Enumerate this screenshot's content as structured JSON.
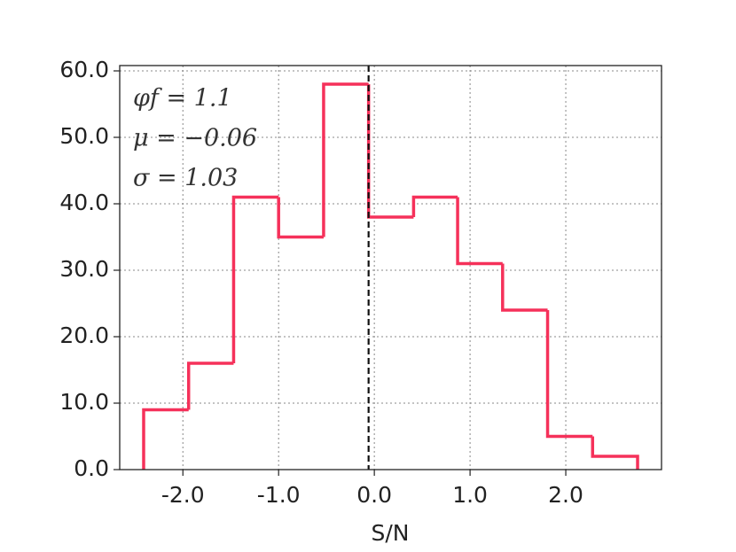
{
  "chart_data": {
    "type": "histogram",
    "xlabel": "S/N",
    "bins": [
      -2.41,
      -1.94,
      -1.47,
      -1.0,
      -0.53,
      -0.06,
      0.41,
      0.87,
      1.34,
      1.81,
      2.28,
      2.75
    ],
    "counts": [
      9,
      16,
      41,
      35,
      58,
      38,
      41,
      31,
      24,
      5,
      2
    ],
    "color": "#f5315a",
    "vline": -0.06,
    "annotations": [
      "φf = 1.1",
      "μ = −0.06",
      "σ = 1.03"
    ],
    "xlim": [
      -2.66,
      3.0
    ],
    "xticks": [
      {
        "value": -2,
        "label": "-2.0"
      },
      {
        "value": -1,
        "label": "-1.0"
      },
      {
        "value": 0,
        "label": "0.0"
      },
      {
        "value": 1,
        "label": "1.0"
      },
      {
        "value": 2,
        "label": "2.0"
      }
    ],
    "ylim": [
      0,
      60.8
    ],
    "yticks": [
      {
        "value": 0,
        "label": "0.0"
      },
      {
        "value": 10,
        "label": "10.0"
      },
      {
        "value": 20,
        "label": "20.0"
      },
      {
        "value": 30,
        "label": "30.0"
      },
      {
        "value": 40,
        "label": "40.0"
      },
      {
        "value": 50,
        "label": "50.0"
      },
      {
        "value": 60,
        "label": "60.0"
      }
    ],
    "grid": true
  }
}
